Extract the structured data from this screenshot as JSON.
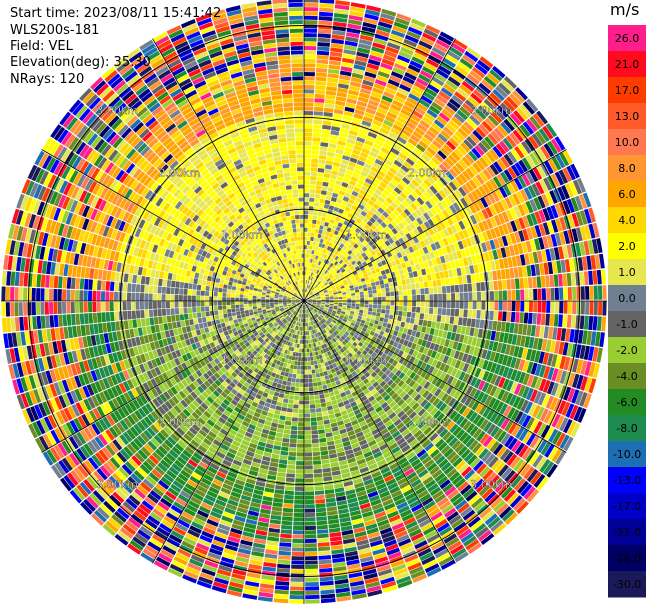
{
  "header": {
    "start_time": "Start time: 2023/08/11 15:41:42",
    "site": "WLS200s-181",
    "field": "Field: VEL",
    "elevation": "Elevation(deg): 35.30",
    "nrays": "NRays: 120"
  },
  "colorbar": {
    "unit": "m/s",
    "levels": [
      {
        "label": "26.0",
        "color": "#ff1e8c"
      },
      {
        "label": "21.0",
        "color": "#ff0a1e"
      },
      {
        "label": "17.0",
        "color": "#ff3c00"
      },
      {
        "label": "13.0",
        "color": "#ff5a28"
      },
      {
        "label": "10.0",
        "color": "#ff7850"
      },
      {
        "label": "8.0",
        "color": "#ff9632"
      },
      {
        "label": "6.0",
        "color": "#ffa500"
      },
      {
        "label": "4.0",
        "color": "#ffd700"
      },
      {
        "label": "2.0",
        "color": "#ffff00"
      },
      {
        "label": "1.0",
        "color": "#e6e650"
      },
      {
        "label": "0.0",
        "color": "#708090"
      },
      {
        "label": "-1.0",
        "color": "#646464"
      },
      {
        "label": "-2.0",
        "color": "#9acd32"
      },
      {
        "label": "-4.0",
        "color": "#6b8e23"
      },
      {
        "label": "-6.0",
        "color": "#228b22"
      },
      {
        "label": "-8.0",
        "color": "#1e8c50"
      },
      {
        "label": "-10.0",
        "color": "#1e6eb4"
      },
      {
        "label": "-13.0",
        "color": "#0000ff"
      },
      {
        "label": "-17.0",
        "color": "#0000c8"
      },
      {
        "label": "-21.0",
        "color": "#000096"
      },
      {
        "label": "-26.0",
        "color": "#000064"
      },
      {
        "label": "-30.0",
        "color": "#1a1a5a"
      }
    ]
  },
  "chart_data": {
    "type": "heatmap",
    "title": "",
    "field": "VEL",
    "elevation_deg": 35.3,
    "nrays": 120,
    "range_rings_km": [
      1.0,
      2.0,
      3.0
    ],
    "ring_labels": [
      "1.00km",
      "2.00km",
      "3.00km"
    ],
    "regions": [
      {
        "range_km": [
          0.0,
          1.3
        ],
        "dominant": "0.0 / 1.0 / 2.0 (near-zero, yellow to north, gray east-west, light green south)"
      },
      {
        "range_km": [
          1.3,
          2.1
        ],
        "dominant": "2.0 to 4.0 north (yellow), -2.0 to -4.0 south (green)"
      },
      {
        "range_km": [
          2.1,
          2.6
        ],
        "dominant": "6.0 to 8.0 north (orange), -4.0 to -8.0 south (dark green)"
      },
      {
        "range_km": [
          2.6,
          4.2
        ],
        "dominant": "noise: full colour range"
      }
    ]
  }
}
